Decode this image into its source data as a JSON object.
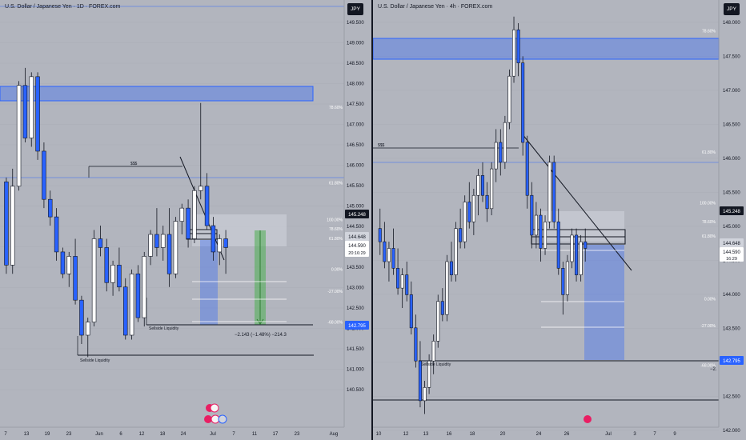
{
  "colors": {
    "background": "#b2b5be",
    "candle_up": "#ffffff",
    "candle_down": "#2962ff",
    "wick": "#131722",
    "zone": "#2962ff",
    "price_badge": "#131722",
    "target_badge": "#2962ff"
  },
  "charts": [
    {
      "title": "U.S. Dollar / Japanese Yen · 1D · FOREX.com",
      "currency": "JPY",
      "y_ticks": [
        "149.500",
        "149.000",
        "148.500",
        "148.000",
        "147.500",
        "147.000",
        "146.500",
        "146.000",
        "145.500",
        "145.000",
        "144.500",
        "144.000",
        "143.500",
        "143.000",
        "142.500",
        "142.000",
        "141.500",
        "141.000",
        "140.500"
      ],
      "x_ticks": [
        "7",
        "13",
        "19",
        "23",
        "Jun",
        "6",
        "12",
        "18",
        "24",
        "Jul",
        "7",
        "11",
        "17",
        "23",
        "Aug"
      ],
      "fib_levels": [
        {
          "label": "100.00%",
          "price": 150.25
        },
        {
          "label": "78.60%",
          "price": 147.75
        },
        {
          "label": "61.80%",
          "price": 146.02
        },
        {
          "label": "100.00%",
          "price": 145.18
        },
        {
          "label": "78.60%",
          "price": 144.97
        },
        {
          "label": "61.80%",
          "price": 144.75
        },
        {
          "label": "0.00%",
          "price": 144.05
        },
        {
          "label": "-27.00%",
          "price": 143.55
        },
        {
          "label": "-68.00%",
          "price": 142.85
        }
      ],
      "annotations": {
        "stops": "$$$",
        "sellside_inner": "Sellside Liquidity",
        "sellside_outer": "Sellside Liquidity",
        "measure": "−2.143 (−1.48%) −214.3"
      },
      "price_labels": {
        "high": "145.248",
        "mid": "144.648",
        "current": "144.590",
        "countdown": "20:16:29",
        "target": "142.795"
      }
    },
    {
      "title": "U.S. Dollar / Japanese Yen · 4h · FOREX.com",
      "currency": "JPY",
      "y_ticks": [
        "148.000",
        "147.500",
        "147.000",
        "146.500",
        "146.000",
        "145.500",
        "145.000",
        "144.500",
        "144.000",
        "143.500",
        "143.000",
        "142.500",
        "142.000"
      ],
      "x_ticks": [
        "10",
        "12",
        "13",
        "16",
        "18",
        "20",
        "24",
        "26",
        "Jul",
        "3",
        "7",
        "9"
      ],
      "fib_levels": [
        {
          "label": "78.60%",
          "price": 147.85
        },
        {
          "label": "61.80%",
          "price": 146.02
        },
        {
          "label": "100.00%",
          "price": 145.25
        },
        {
          "label": "78.60%",
          "price": 144.97
        },
        {
          "label": "61.80%",
          "price": 144.75
        },
        {
          "label": "0.00%",
          "price": 143.8
        },
        {
          "label": "-27.00%",
          "price": 143.4
        },
        {
          "label": "-68.00%",
          "price": 142.8
        }
      ],
      "annotations": {
        "stops": "$$$",
        "sellside": "Sellside Liquidity",
        "measure": "−2."
      },
      "price_labels": {
        "high": "145.248",
        "mid": "144.648",
        "current": "144.590",
        "countdown": "16:29",
        "target": "142.795"
      }
    }
  ],
  "chart_data": [
    {
      "type": "candlestick",
      "timeframe": "1D",
      "title": "U.S. Dollar / Japanese Yen · 1D · FOREX.com",
      "ylim": [
        140.5,
        150.25
      ],
      "candles": [
        [
          146.1,
          146.2,
          144.0,
          144.2
        ],
        [
          144.2,
          146.4,
          144.0,
          146.0
        ],
        [
          146.0,
          148.4,
          145.9,
          148.3
        ],
        [
          148.3,
          148.7,
          147.0,
          147.1
        ],
        [
          147.1,
          148.6,
          146.9,
          148.5
        ],
        [
          148.5,
          148.6,
          146.6,
          146.8
        ],
        [
          146.8,
          147.0,
          145.5,
          145.7
        ],
        [
          145.7,
          145.9,
          145.1,
          145.3
        ],
        [
          145.3,
          145.5,
          144.3,
          144.5
        ],
        [
          144.5,
          144.6,
          143.9,
          144.0
        ],
        [
          144.0,
          144.5,
          143.7,
          144.4
        ],
        [
          144.4,
          144.8,
          143.3,
          143.4
        ],
        [
          143.4,
          143.5,
          142.4,
          142.6
        ],
        [
          142.6,
          143.0,
          142.1,
          142.9
        ],
        [
          142.9,
          145.0,
          142.8,
          144.8
        ],
        [
          144.8,
          145.1,
          144.4,
          144.6
        ],
        [
          144.6,
          144.8,
          143.6,
          143.8
        ],
        [
          143.8,
          144.3,
          143.5,
          144.2
        ],
        [
          144.2,
          144.6,
          143.6,
          143.7
        ],
        [
          143.7,
          143.9,
          142.5,
          142.6
        ],
        [
          142.6,
          144.1,
          142.5,
          144.0
        ],
        [
          144.0,
          144.2,
          142.9,
          143.0
        ],
        [
          143.0,
          144.5,
          142.8,
          144.4
        ],
        [
          144.4,
          145.0,
          144.2,
          144.9
        ],
        [
          144.9,
          145.5,
          144.4,
          144.6
        ],
        [
          144.6,
          145.1,
          144.3,
          144.9
        ],
        [
          144.9,
          145.5,
          143.7,
          144.0
        ],
        [
          144.0,
          145.3,
          143.9,
          145.2
        ],
        [
          145.2,
          145.6,
          144.9,
          145.5
        ],
        [
          145.5,
          145.7,
          144.6,
          144.8
        ],
        [
          144.8,
          146.0,
          144.7,
          145.9
        ],
        [
          145.9,
          147.9,
          145.7,
          146.0
        ],
        [
          146.0,
          146.3,
          145.0,
          145.1
        ],
        [
          145.1,
          145.3,
          144.3,
          144.5
        ],
        [
          144.5,
          144.9,
          144.2,
          144.8
        ],
        [
          144.8,
          145.0,
          144.0,
          144.6
        ]
      ],
      "annotations": [
        "$$$",
        "Sellside Liquidity",
        "−2.143 (−1.48%) −214.3"
      ],
      "fib": [
        "100.00%",
        "78.60%",
        "61.80%",
        "0.00%",
        "-27.00%",
        "-68.00%"
      ]
    },
    {
      "type": "candlestick",
      "timeframe": "4h",
      "title": "U.S. Dollar / Japanese Yen · 4h · FOREX.com",
      "ylim": [
        141.9,
        148.35
      ],
      "candles": [
        [
          144.9,
          145.2,
          144.5,
          144.7
        ],
        [
          144.7,
          145.0,
          144.3,
          144.4
        ],
        [
          144.4,
          144.7,
          144.1,
          144.6
        ],
        [
          144.6,
          144.9,
          144.2,
          144.3
        ],
        [
          144.3,
          144.6,
          143.9,
          144.0
        ],
        [
          144.0,
          144.3,
          143.7,
          144.2
        ],
        [
          144.2,
          144.4,
          143.8,
          143.9
        ],
        [
          143.9,
          144.1,
          143.3,
          143.4
        ],
        [
          143.4,
          143.6,
          142.8,
          142.9
        ],
        [
          142.9,
          143.2,
          142.2,
          142.3
        ],
        [
          142.3,
          142.6,
          142.1,
          142.5
        ],
        [
          142.5,
          143.0,
          142.4,
          142.9
        ],
        [
          142.9,
          143.3,
          142.7,
          143.2
        ],
        [
          143.2,
          143.9,
          143.1,
          143.8
        ],
        [
          143.8,
          144.0,
          143.5,
          143.6
        ],
        [
          143.6,
          144.5,
          143.5,
          144.4
        ],
        [
          144.4,
          144.7,
          144.1,
          144.2
        ],
        [
          144.2,
          145.0,
          144.1,
          144.9
        ],
        [
          144.9,
          145.2,
          144.6,
          144.7
        ],
        [
          144.7,
          145.4,
          144.6,
          145.3
        ],
        [
          145.3,
          145.6,
          144.9,
          145.0
        ],
        [
          145.0,
          145.5,
          144.8,
          145.4
        ],
        [
          145.4,
          145.8,
          145.1,
          145.7
        ],
        [
          145.7,
          145.9,
          145.3,
          145.4
        ],
        [
          145.4,
          145.6,
          145.0,
          145.2
        ],
        [
          145.2,
          145.9,
          145.1,
          145.8
        ],
        [
          145.8,
          146.4,
          145.6,
          146.2
        ],
        [
          146.2,
          146.4,
          145.7,
          145.9
        ],
        [
          145.9,
          146.6,
          145.8,
          146.5
        ],
        [
          146.5,
          147.3,
          146.4,
          147.2
        ],
        [
          147.2,
          148.1,
          147.1,
          147.9
        ],
        [
          147.9,
          148.0,
          147.2,
          147.4
        ],
        [
          147.4,
          147.5,
          146.0,
          146.2
        ],
        [
          146.2,
          146.3,
          145.2,
          145.4
        ],
        [
          145.4,
          145.6,
          144.6,
          144.8
        ],
        [
          144.8,
          145.3,
          144.6,
          145.1
        ],
        [
          145.1,
          145.2,
          144.4,
          144.6
        ],
        [
          144.6,
          145.1,
          144.5,
          145.0
        ],
        [
          145.0,
          146.0,
          144.9,
          145.9
        ],
        [
          145.9,
          146.0,
          144.9,
          145.0
        ],
        [
          145.0,
          145.2,
          144.2,
          144.3
        ],
        [
          144.3,
          144.4,
          143.6,
          143.9
        ],
        [
          143.9,
          144.5,
          143.8,
          144.4
        ],
        [
          144.4,
          144.9,
          144.3,
          144.8
        ],
        [
          144.8,
          144.9,
          144.1,
          144.2
        ],
        [
          144.2,
          144.8,
          144.1,
          144.7
        ],
        [
          144.7,
          144.9,
          144.4,
          144.6
        ]
      ],
      "annotations": [
        "$$$",
        "Sellside Liquidity",
        "−2."
      ],
      "fib": [
        "78.60%",
        "61.80%",
        "100.00%",
        "78.60%",
        "61.80%",
        "0.00%",
        "-27.00%",
        "-68.00%"
      ]
    }
  ]
}
